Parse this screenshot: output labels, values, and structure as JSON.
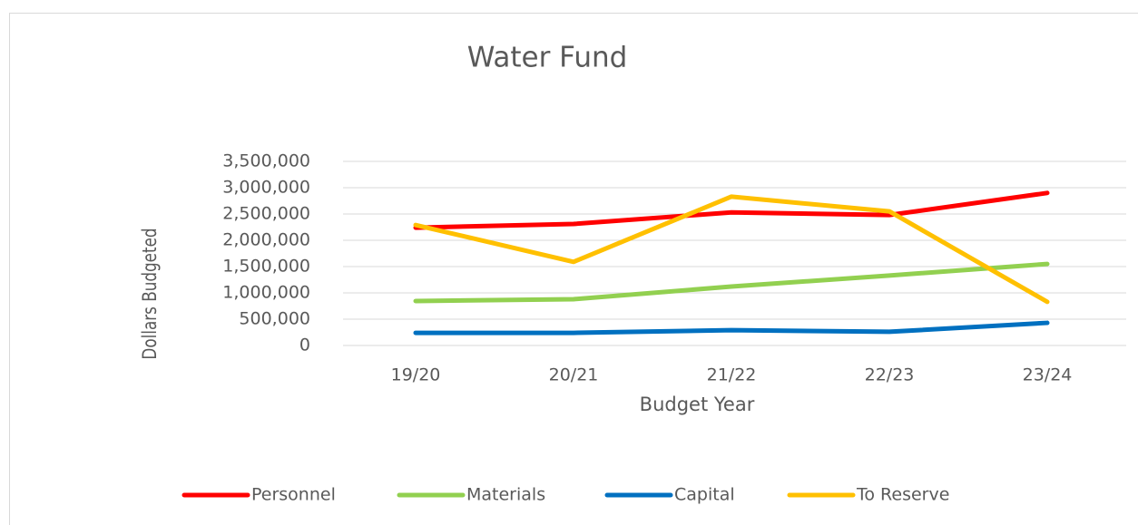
{
  "chart_data": {
    "type": "line",
    "title": "Water Fund",
    "x_label": "Budget Year",
    "y_label": "Dollars Budgeted",
    "categories": [
      "19/20",
      "20/21",
      "21/22",
      "22/23",
      "23/24"
    ],
    "series": [
      {
        "name": "Personnel",
        "color": "#ff0000",
        "values": [
          2240000,
          2310000,
          2530000,
          2480000,
          2900000
        ]
      },
      {
        "name": "Materials",
        "color": "#92d050",
        "values": [
          845000,
          880000,
          1120000,
          1330000,
          1550000
        ]
      },
      {
        "name": "Capital",
        "color": "#0070c0",
        "values": [
          240000,
          240000,
          290000,
          260000,
          430000
        ]
      },
      {
        "name": "To Reserve",
        "color": "#ffc000",
        "values": [
          2290000,
          1590000,
          2830000,
          2550000,
          830000
        ]
      }
    ],
    "ylim": [
      0,
      3500000
    ],
    "yticks": [
      0,
      {
        "value": 500000,
        "label": "500,000"
      },
      {
        "value": 1000000,
        "label": "1,000,000"
      },
      {
        "value": 1500000,
        "label": "1,500,000"
      },
      {
        "value": 2000000,
        "label": "2,000,000"
      },
      {
        "value": 2500000,
        "label": "2,500,000"
      },
      {
        "value": 3000000,
        "label": "3,000,000"
      },
      {
        "value": 3500000,
        "label": "3,500,000"
      }
    ],
    "grid": true,
    "legend": "bottom"
  }
}
